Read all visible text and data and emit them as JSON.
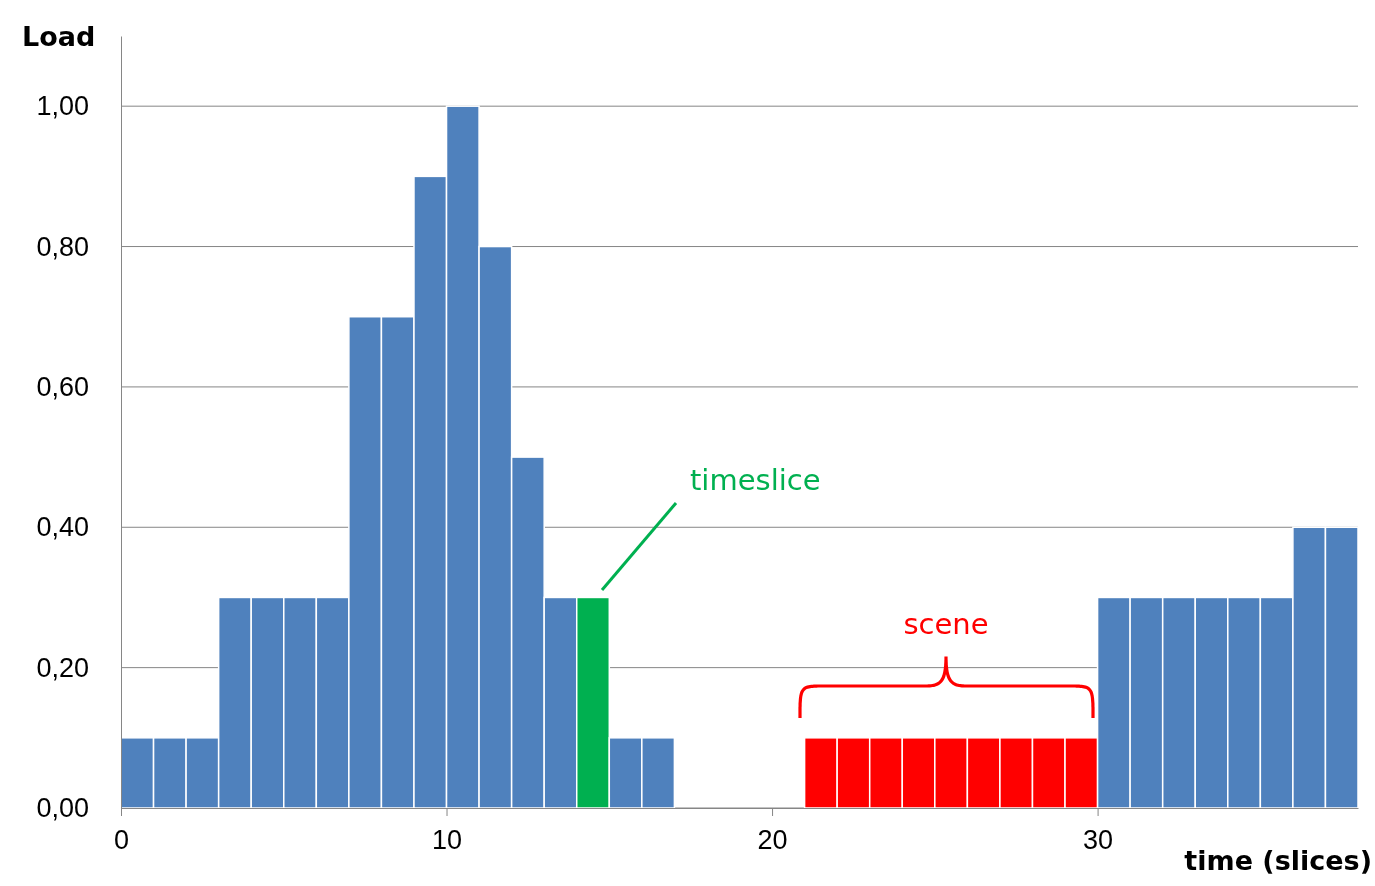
{
  "chart_data": {
    "type": "histogram",
    "xlabel": "time (slices)",
    "ylabel": "Load",
    "bins": [
      0,
      1,
      2,
      3,
      4,
      5,
      6,
      7,
      8,
      9,
      10,
      11,
      12,
      13,
      14,
      15,
      16,
      17,
      18,
      19,
      20,
      21,
      22,
      23,
      24,
      25,
      26,
      27,
      28,
      29,
      30,
      31,
      32,
      33,
      34,
      35,
      36,
      37,
      38
    ],
    "values": [
      0.1,
      0.1,
      0.1,
      0.3,
      0.3,
      0.3,
      0.3,
      0.7,
      0.7,
      0.9,
      1.0,
      0.8,
      0.5,
      0.3,
      0.3,
      0.1,
      0.1,
      0,
      0,
      0,
      0,
      0.1,
      0.1,
      0.1,
      0.1,
      0.1,
      0.1,
      0.1,
      0.1,
      0.1,
      0.3,
      0.3,
      0.3,
      0.3,
      0.3,
      0.3,
      0.4,
      0.4
    ],
    "colors": [
      "#4f81bd",
      "#4f81bd",
      "#4f81bd",
      "#4f81bd",
      "#4f81bd",
      "#4f81bd",
      "#4f81bd",
      "#4f81bd",
      "#4f81bd",
      "#4f81bd",
      "#4f81bd",
      "#4f81bd",
      "#4f81bd",
      "#4f81bd",
      "#00b050",
      "#4f81bd",
      "#4f81bd",
      "#4f81bd",
      "#4f81bd",
      "#4f81bd",
      "#4f81bd",
      "#ff0000",
      "#ff0000",
      "#ff0000",
      "#ff0000",
      "#ff0000",
      "#ff0000",
      "#ff0000",
      "#ff0000",
      "#ff0000",
      "#4f81bd",
      "#4f81bd",
      "#4f81bd",
      "#4f81bd",
      "#4f81bd",
      "#4f81bd",
      "#4f81bd",
      "#4f81bd"
    ],
    "xlim": [
      0,
      38
    ],
    "xticks": [
      0,
      10,
      20,
      30
    ],
    "ylim": [
      0,
      1.1
    ],
    "yticks": [
      {
        "value": 0,
        "label": "0,00"
      },
      {
        "value": 0.2,
        "label": "0,20"
      },
      {
        "value": 0.4,
        "label": "0,40"
      },
      {
        "value": 0.6,
        "label": "0,60"
      },
      {
        "value": 0.8,
        "label": "0,80"
      },
      {
        "value": 1.0,
        "label": "1,00"
      }
    ],
    "grid": "y",
    "annotations": [
      "timeslice",
      "scene"
    ]
  }
}
